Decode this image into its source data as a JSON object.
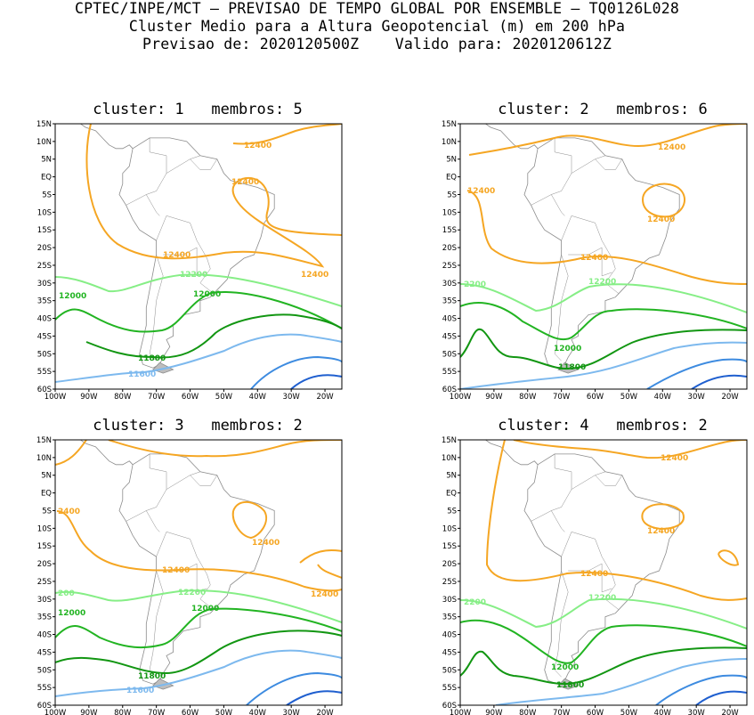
{
  "header": {
    "line1": "CPTEC/INPE/MCT – PREVISAO DE TEMPO GLOBAL POR ENSEMBLE – TQ0126L028",
    "line2": "Cluster Medio para a Altura Geopotencial (m) em 200 hPa",
    "line3": "Previsao de: 2020120500Z    Valido para: 2020120612Z"
  },
  "axes": {
    "lat_labels": [
      "15N",
      "10N",
      "5N",
      "EQ",
      "5S",
      "10S",
      "15S",
      "20S",
      "25S",
      "30S",
      "35S",
      "40S",
      "45S",
      "50S",
      "55S",
      "60S"
    ],
    "lon_labels": [
      "100W",
      "90W",
      "80W",
      "70W",
      "60W",
      "50W",
      "40W",
      "30W",
      "20W"
    ]
  },
  "colors": {
    "c12400": "#f5a623",
    "c12200": "#86ee86",
    "c12000": "#22b422",
    "c11800": "#129612",
    "c11600": "#7db9ee",
    "c11400": "#3d8be0",
    "c11200": "#1f5fcf",
    "coast": "#8c8c8c"
  },
  "panels": [
    {
      "title": "cluster: 1   membros: 5",
      "labels": {
        "a": "12400",
        "b": "12400",
        "c": "12400",
        "d": "12400",
        "e": "12200",
        "f": "12000",
        "g": "12000",
        "h": "11800",
        "i": "11600"
      }
    },
    {
      "title": "cluster: 2   membros: 6",
      "labels": {
        "a": "12400",
        "b": "12400",
        "c": "12400",
        "d": "12400",
        "e": "2200",
        "f": "12200",
        "g": "12000",
        "h": "11800"
      }
    },
    {
      "title": "cluster: 3   membros: 2",
      "labels": {
        "a": "2400",
        "b": "12400",
        "c": "12400",
        "d": "12400",
        "e": "200",
        "f": "12200",
        "g": "12000",
        "h": "12000",
        "i": "11800",
        "j": "11600"
      }
    },
    {
      "title": "cluster: 4   membros: 2",
      "labels": {
        "a": "12400",
        "b": "12400",
        "c": "12400",
        "d": "2200",
        "e": "12200",
        "f": "12000",
        "g": "11800"
      }
    }
  ]
}
